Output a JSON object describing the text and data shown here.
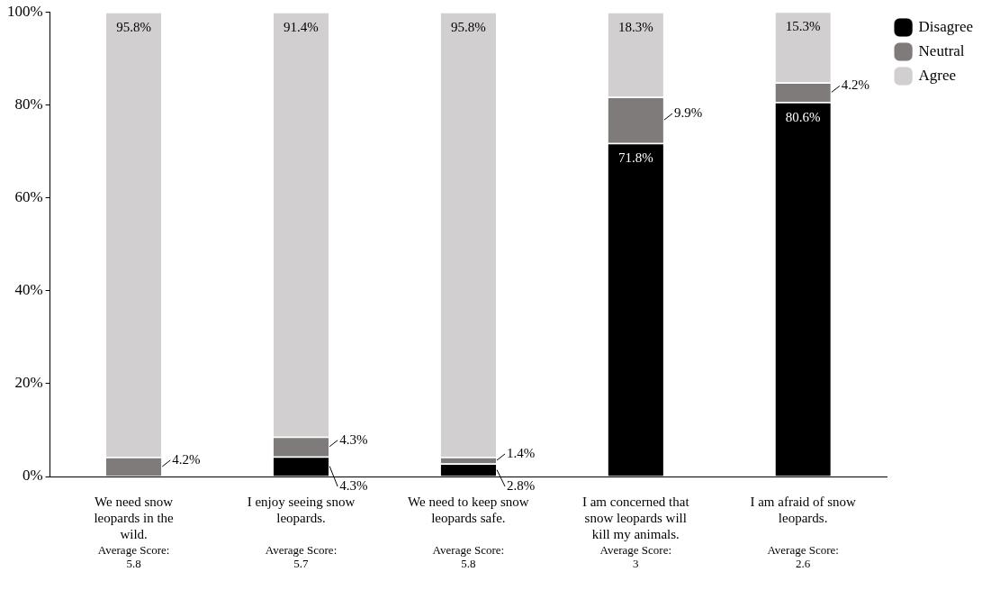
{
  "chart_data": {
    "type": "bar",
    "stacked": true,
    "categories": [
      "We need snow leopards in the wild.",
      "I enjoy seeing snow leopards.",
      "We need to keep snow leopards safe.",
      "I am concerned that snow leopards will kill my animals.",
      "I am afraid of snow leopards."
    ],
    "series": [
      {
        "name": "Disagree",
        "color": "#000000",
        "values": [
          0,
          4.3,
          2.8,
          71.8,
          80.6
        ],
        "value_labels": [
          null,
          "4.3%",
          "2.8%",
          "71.8%",
          "80.6%"
        ]
      },
      {
        "name": "Neutral",
        "color": "#7f7b7b",
        "values": [
          4.2,
          4.3,
          1.4,
          9.9,
          4.2
        ],
        "value_labels": [
          "4.2%",
          "4.3%",
          "1.4%",
          "9.9%",
          "4.2%"
        ]
      },
      {
        "name": "Agree",
        "color": "#d1cfd0",
        "values": [
          95.8,
          91.4,
          95.8,
          18.3,
          15.3
        ],
        "value_labels": [
          "95.8%",
          "91.4%",
          "95.8%",
          "18.3%",
          "15.3%"
        ]
      }
    ],
    "ylim": [
      0,
      100
    ],
    "yticks": [
      {
        "value": 0,
        "label": "0%"
      },
      {
        "value": 20,
        "label": "20%"
      },
      {
        "value": 40,
        "label": "40%"
      },
      {
        "value": 60,
        "label": "60%"
      },
      {
        "value": 80,
        "label": "80%"
      },
      {
        "value": 100,
        "label": "100%"
      }
    ],
    "grid": false,
    "legend": "top right",
    "annotations": [
      "Average Score:\n5.8",
      "Average Score:\n5.7",
      "Average Score:\n5.8",
      "Average Score:\n3",
      "Average Score:\n2.6"
    ]
  }
}
